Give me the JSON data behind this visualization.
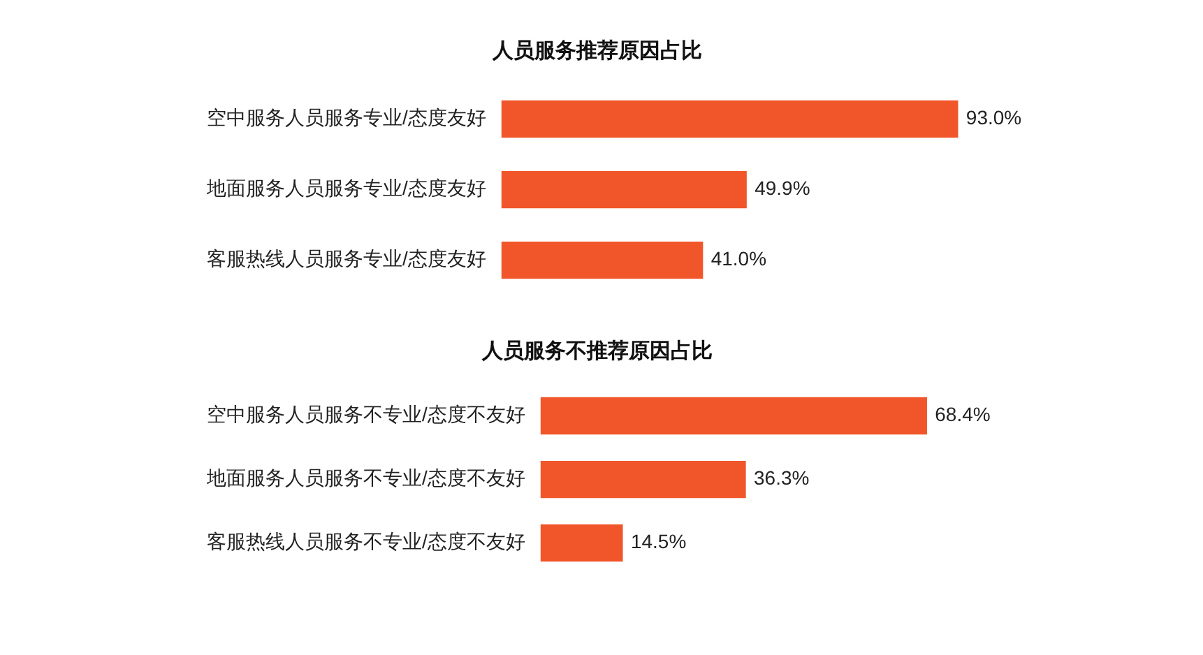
{
  "chart_data": [
    {
      "type": "bar",
      "orientation": "horizontal",
      "title": "人员服务推荐原因占比",
      "categories": [
        "空中服务人员服务专业/态度友好",
        "地面服务人员服务专业/态度友好",
        "客服热线人员服务专业/态度友好"
      ],
      "values": [
        93.0,
        49.9,
        41.0
      ],
      "value_labels": [
        "93.0%",
        "49.9%",
        "41.0%"
      ],
      "color": "#f0562a",
      "tick_labels": "y",
      "legend": false
    },
    {
      "type": "bar",
      "orientation": "horizontal",
      "title": "人员服务不推荐原因占比",
      "categories": [
        "空中服务人员服务不专业/态度不友好",
        "地面服务人员服务不专业/态度不友好",
        "客服热线人员服务不专业/态度不友好"
      ],
      "values": [
        68.4,
        36.3,
        14.5
      ],
      "value_labels": [
        "68.4%",
        "36.3%",
        "14.5%"
      ],
      "color": "#f0562a",
      "tick_labels": "y",
      "legend": false
    }
  ]
}
